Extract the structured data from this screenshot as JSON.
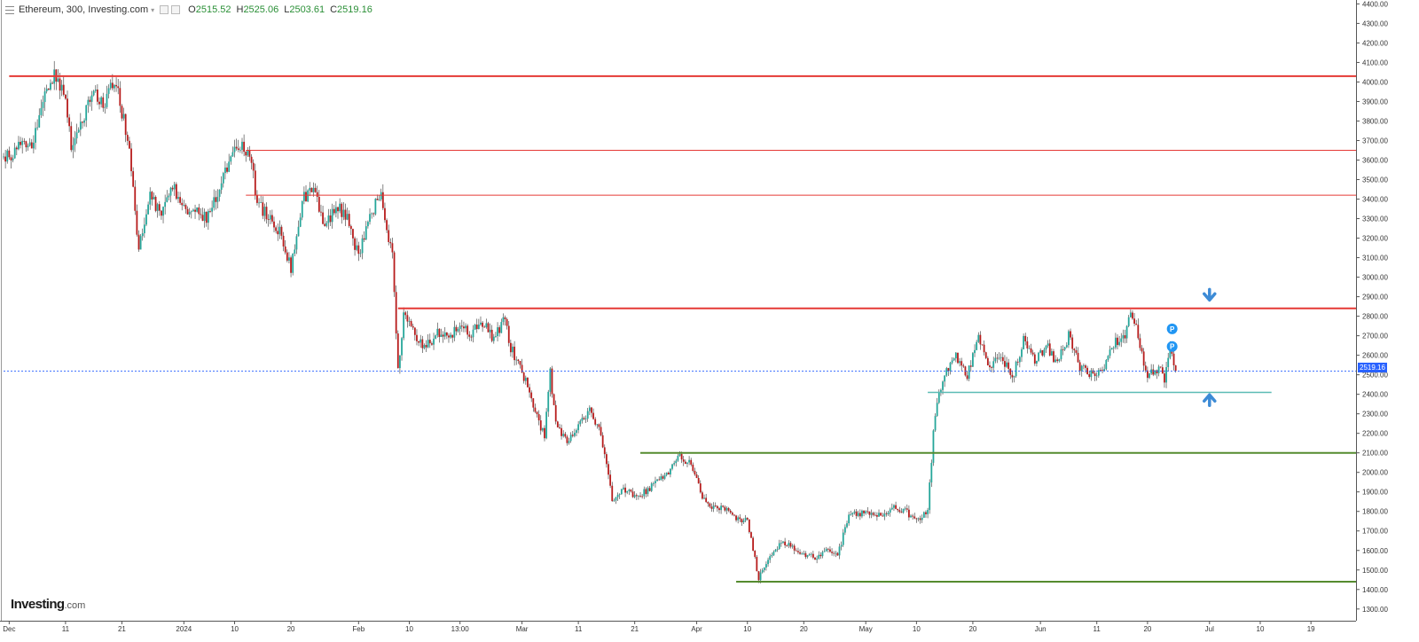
{
  "header": {
    "title": "Ethereum, 300, Investing.com",
    "ohlc": [
      {
        "key": "O",
        "value": "2515.52"
      },
      {
        "key": "H",
        "value": "2525.06"
      },
      {
        "key": "L",
        "value": "2503.61"
      },
      {
        "key": "C",
        "value": "2519.16"
      }
    ]
  },
  "logo": {
    "brand": "Investing",
    "suffix": ".com"
  },
  "current_price_label": "2519.16",
  "colors": {
    "up": "#26a69a",
    "down": "#b71c1c",
    "resistance": "#e53935",
    "support_teal": "#5bbcb5",
    "support_green": "#558b2f",
    "price_line": "#2962ff",
    "arrow": "#3d8bd6",
    "marker": "#2196f3"
  },
  "icons": [
    "menu-icon",
    "arrow-down-icon",
    "arrow-up-icon",
    "pivot-marker-icon"
  ],
  "chart_data": {
    "type": "candlestick",
    "instrument": "Ethereum",
    "interval": "300",
    "last_close": 2519.16,
    "ylim": [
      1240,
      4420
    ],
    "yticks": [
      1300,
      1400,
      1500,
      1600,
      1700,
      1800,
      1900,
      2000,
      2100,
      2200,
      2300,
      2400,
      2500,
      2600,
      2700,
      2800,
      2900,
      3000,
      3100,
      3200,
      3300,
      3400,
      3500,
      3600,
      3700,
      3800,
      3900,
      4000,
      4100,
      4200,
      4300,
      4400
    ],
    "xlim": [
      "2023-11-30",
      "2024-07-27"
    ],
    "xticks": [
      {
        "date": "2023-12-01",
        "label": "Dec"
      },
      {
        "date": "2023-12-11",
        "label": "11"
      },
      {
        "date": "2023-12-21",
        "label": "21"
      },
      {
        "date": "2024-01-01",
        "label": "2024"
      },
      {
        "date": "2024-01-10",
        "label": "10"
      },
      {
        "date": "2024-01-20",
        "label": "20"
      },
      {
        "date": "2024-02-01",
        "label": "Feb"
      },
      {
        "date": "2024-02-10",
        "label": "10"
      },
      {
        "date": "2024-02-19",
        "label": "13:00"
      },
      {
        "date": "2024-03-01",
        "label": "Mar"
      },
      {
        "date": "2024-03-11",
        "label": "11"
      },
      {
        "date": "2024-03-21",
        "label": "21"
      },
      {
        "date": "2024-04-01",
        "label": "Apr"
      },
      {
        "date": "2024-04-10",
        "label": "10"
      },
      {
        "date": "2024-04-20",
        "label": "20"
      },
      {
        "date": "2024-05-01",
        "label": "May"
      },
      {
        "date": "2024-05-10",
        "label": "10"
      },
      {
        "date": "2024-05-20",
        "label": "20"
      },
      {
        "date": "2024-06-01",
        "label": "Jun"
      },
      {
        "date": "2024-06-11",
        "label": "11"
      },
      {
        "date": "2024-06-20",
        "label": "20"
      },
      {
        "date": "2024-07-01",
        "label": "Jul"
      },
      {
        "date": "2024-07-10",
        "label": "10"
      },
      {
        "date": "2024-07-19",
        "label": "19"
      }
    ],
    "price_path": [
      [
        "2023-11-30",
        3640
      ],
      [
        "2023-12-01",
        3600
      ],
      [
        "2023-12-03",
        3690
      ],
      [
        "2023-12-05",
        3650
      ],
      [
        "2023-12-07",
        3920
      ],
      [
        "2023-12-09",
        4040
      ],
      [
        "2023-12-11",
        3950
      ],
      [
        "2023-12-12",
        3650
      ],
      [
        "2023-12-14",
        3820
      ],
      [
        "2023-12-16",
        3940
      ],
      [
        "2023-12-18",
        3900
      ],
      [
        "2023-12-19",
        4020
      ],
      [
        "2023-12-20",
        3980
      ],
      [
        "2023-12-22",
        3720
      ],
      [
        "2023-12-24",
        3150
      ],
      [
        "2023-12-26",
        3430
      ],
      [
        "2023-12-28",
        3300
      ],
      [
        "2023-12-30",
        3480
      ],
      [
        "2024-01-01",
        3340
      ],
      [
        "2024-01-03",
        3360
      ],
      [
        "2024-01-05",
        3300
      ],
      [
        "2024-01-07",
        3420
      ],
      [
        "2024-01-09",
        3600
      ],
      [
        "2024-01-11",
        3680
      ],
      [
        "2024-01-13",
        3580
      ],
      [
        "2024-01-14",
        3380
      ],
      [
        "2024-01-16",
        3310
      ],
      [
        "2024-01-18",
        3240
      ],
      [
        "2024-01-20",
        3040
      ],
      [
        "2024-01-22",
        3390
      ],
      [
        "2024-01-24",
        3480
      ],
      [
        "2024-01-26",
        3260
      ],
      [
        "2024-01-28",
        3370
      ],
      [
        "2024-01-30",
        3310
      ],
      [
        "2024-02-01",
        3100
      ],
      [
        "2024-02-03",
        3320
      ],
      [
        "2024-02-05",
        3420
      ],
      [
        "2024-02-07",
        3100
      ],
      [
        "2024-02-08",
        2510
      ],
      [
        "2024-02-09",
        2800
      ],
      [
        "2024-02-11",
        2700
      ],
      [
        "2024-02-13",
        2640
      ],
      [
        "2024-02-15",
        2720
      ],
      [
        "2024-02-17",
        2680
      ],
      [
        "2024-02-19",
        2760
      ],
      [
        "2024-02-21",
        2710
      ],
      [
        "2024-02-23",
        2770
      ],
      [
        "2024-02-25",
        2680
      ],
      [
        "2024-02-27",
        2790
      ],
      [
        "2024-02-28",
        2640
      ],
      [
        "2024-03-01",
        2520
      ],
      [
        "2024-03-03",
        2340
      ],
      [
        "2024-03-05",
        2180
      ],
      [
        "2024-03-06",
        2510
      ],
      [
        "2024-03-07",
        2240
      ],
      [
        "2024-03-09",
        2160
      ],
      [
        "2024-03-11",
        2230
      ],
      [
        "2024-03-13",
        2330
      ],
      [
        "2024-03-15",
        2200
      ],
      [
        "2024-03-17",
        1860
      ],
      [
        "2024-03-19",
        1920
      ],
      [
        "2024-03-21",
        1880
      ],
      [
        "2024-03-23",
        1900
      ],
      [
        "2024-03-25",
        1960
      ],
      [
        "2024-03-27",
        2000
      ],
      [
        "2024-03-29",
        2080
      ],
      [
        "2024-03-31",
        2040
      ],
      [
        "2024-04-02",
        1880
      ],
      [
        "2024-04-04",
        1820
      ],
      [
        "2024-04-06",
        1810
      ],
      [
        "2024-04-08",
        1760
      ],
      [
        "2024-04-10",
        1760
      ],
      [
        "2024-04-12",
        1460
      ],
      [
        "2024-04-14",
        1580
      ],
      [
        "2024-04-16",
        1640
      ],
      [
        "2024-04-18",
        1620
      ],
      [
        "2024-04-20",
        1580
      ],
      [
        "2024-04-22",
        1560
      ],
      [
        "2024-04-24",
        1610
      ],
      [
        "2024-04-26",
        1570
      ],
      [
        "2024-04-28",
        1790
      ],
      [
        "2024-04-30",
        1790
      ],
      [
        "2024-05-02",
        1800
      ],
      [
        "2024-05-04",
        1780
      ],
      [
        "2024-05-06",
        1830
      ],
      [
        "2024-05-08",
        1800
      ],
      [
        "2024-05-10",
        1760
      ],
      [
        "2024-05-12",
        1800
      ],
      [
        "2024-05-13",
        2200
      ],
      [
        "2024-05-14",
        2420
      ],
      [
        "2024-05-16",
        2560
      ],
      [
        "2024-05-17",
        2600
      ],
      [
        "2024-05-19",
        2500
      ],
      [
        "2024-05-21",
        2680
      ],
      [
        "2024-05-23",
        2540
      ],
      [
        "2024-05-25",
        2600
      ],
      [
        "2024-05-27",
        2480
      ],
      [
        "2024-05-29",
        2680
      ],
      [
        "2024-05-31",
        2560
      ],
      [
        "2024-06-02",
        2650
      ],
      [
        "2024-06-04",
        2560
      ],
      [
        "2024-06-06",
        2700
      ],
      [
        "2024-06-08",
        2540
      ],
      [
        "2024-06-10",
        2500
      ],
      [
        "2024-06-12",
        2520
      ],
      [
        "2024-06-14",
        2660
      ],
      [
        "2024-06-16",
        2700
      ],
      [
        "2024-06-17",
        2840
      ],
      [
        "2024-06-18",
        2750
      ],
      [
        "2024-06-19",
        2600
      ],
      [
        "2024-06-20",
        2500
      ],
      [
        "2024-06-22",
        2530
      ],
      [
        "2024-06-23",
        2480
      ],
      [
        "2024-06-24",
        2650
      ],
      [
        "2024-06-25",
        2520
      ]
    ],
    "horizontal_levels": [
      {
        "price": 4030,
        "from": "2023-12-01",
        "color": "resistance",
        "weight": 2
      },
      {
        "price": 3650,
        "from": "2024-01-12",
        "color": "resistance",
        "weight": 1
      },
      {
        "price": 3420,
        "from": "2024-01-12",
        "color": "resistance",
        "weight": 1
      },
      {
        "price": 2840,
        "from": "2024-02-08",
        "color": "resistance",
        "weight": 2
      },
      {
        "price": 2410,
        "from": "2024-05-12",
        "to": "2024-07-12",
        "color": "support_teal",
        "weight": 1.5
      },
      {
        "price": 2100,
        "from": "2024-03-22",
        "color": "support_green",
        "weight": 2
      },
      {
        "price": 1440,
        "from": "2024-04-08",
        "color": "support_green",
        "weight": 2
      }
    ],
    "pivot_markers": [
      {
        "date": "2024-06-25",
        "price": 2735,
        "label": "P"
      },
      {
        "date": "2024-06-25",
        "price": 2645,
        "label": "P"
      }
    ],
    "arrows": [
      {
        "date": "2024-07-01",
        "price": 2910,
        "direction": "down"
      },
      {
        "date": "2024-07-01",
        "price": 2370,
        "direction": "up"
      }
    ]
  }
}
